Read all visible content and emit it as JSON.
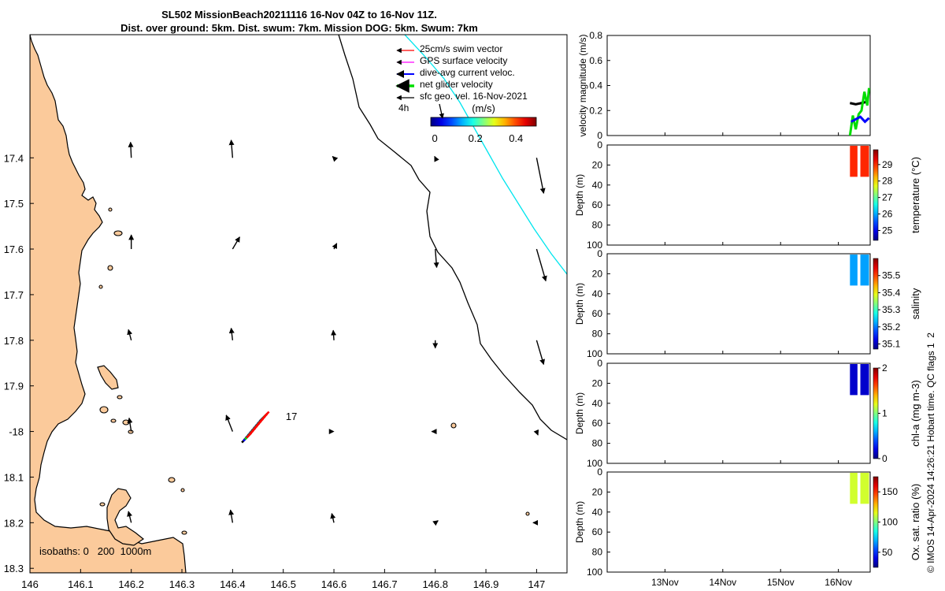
{
  "figure": {
    "title_line1": "SL502 MissionBeach20211116 16-Nov 04Z to 16-Nov 11Z.",
    "title_line2": "Dist. over ground: 5km. Dist. swum: 7km. Mission DOG: 5km. Swum: 7km",
    "footer": "© IMOS 14-Apr-2024 14:26:21 Hobart time. QC flags 1  2"
  },
  "chart_data": [
    {
      "type": "scatter",
      "panel": "map",
      "xlim": [
        146.0,
        147.06
      ],
      "ylim": [
        -18.31,
        -17.13
      ],
      "x_ticks": [
        146,
        146.1,
        146.2,
        146.3,
        146.4,
        146.5,
        146.6,
        146.7,
        146.8,
        146.9,
        147
      ],
      "x_tick_labels": [
        "146",
        "146.1",
        "146.2",
        "146.3",
        "146.4",
        "146.5",
        "146.6",
        "146.7",
        "146.8",
        "146.9",
        "147"
      ],
      "y_ticks": [
        -17.4,
        -17.5,
        -17.6,
        -17.7,
        -17.8,
        -17.9,
        -18.0,
        -18.1,
        -18.2,
        -18.3
      ],
      "y_tick_labels": [
        "17.4",
        "17.5",
        "17.6",
        "17.7",
        "17.8",
        "17.9",
        "-18",
        "18.1",
        "18.2",
        "18.3"
      ],
      "legend": [
        {
          "label": "25cm/s swim vector",
          "color": "#ff0000"
        },
        {
          "label": "GPS surface velocity",
          "color": "#ff00ff"
        },
        {
          "label": "dive-avg current veloc.",
          "color": "#0000ff"
        },
        {
          "label": "net glider velocity",
          "color": "#00dd00"
        },
        {
          "label": "sfc geo. vel. 16-Nov-2021",
          "color": "#000000"
        }
      ],
      "time_label": "4h",
      "colorbar": {
        "label": "(m/s)",
        "ticks": [
          "0",
          "0.2",
          "0.4"
        ],
        "range": [
          -0.02,
          0.5
        ]
      },
      "annotations": [
        {
          "text": "17",
          "lon": 146.505,
          "lat": -17.975
        }
      ],
      "isobaths_label": "isobaths: 0   200  1000m",
      "coastline_color": "#fbca9b",
      "current_arrows": [
        {
          "lon": 146.2,
          "lat": -17.4,
          "u": -0.01,
          "v": 0.22
        },
        {
          "lon": 146.4,
          "lat": -17.4,
          "u": -0.02,
          "v": 0.25
        },
        {
          "lon": 146.6,
          "lat": -17.4,
          "u": -0.02,
          "v": 0.02
        },
        {
          "lon": 146.8,
          "lat": -17.4,
          "u": -0.01,
          "v": 0.02
        },
        {
          "lon": 147.0,
          "lat": -17.4,
          "u": 0.1,
          "v": -0.5
        },
        {
          "lon": 146.2,
          "lat": -17.6,
          "u": 0.0,
          "v": 0.2
        },
        {
          "lon": 146.4,
          "lat": -17.6,
          "u": 0.1,
          "v": 0.17
        },
        {
          "lon": 146.6,
          "lat": -17.6,
          "u": 0.04,
          "v": 0.08
        },
        {
          "lon": 146.8,
          "lat": -17.6,
          "u": 0.02,
          "v": -0.26
        },
        {
          "lon": 147.0,
          "lat": -17.6,
          "u": 0.13,
          "v": -0.45
        },
        {
          "lon": 146.2,
          "lat": -17.8,
          "u": -0.04,
          "v": 0.15
        },
        {
          "lon": 146.4,
          "lat": -17.8,
          "u": -0.02,
          "v": 0.17
        },
        {
          "lon": 146.6,
          "lat": -17.8,
          "u": -0.01,
          "v": 0.14
        },
        {
          "lon": 146.8,
          "lat": -17.8,
          "u": 0.0,
          "v": -0.11
        },
        {
          "lon": 147.0,
          "lat": -17.8,
          "u": 0.1,
          "v": -0.34
        },
        {
          "lon": 146.2,
          "lat": -18.0,
          "u": -0.03,
          "v": 0.19
        },
        {
          "lon": 146.4,
          "lat": -18.0,
          "u": -0.09,
          "v": 0.23
        },
        {
          "lon": 146.6,
          "lat": -18.0,
          "u": 0.0,
          "v": 0.0
        },
        {
          "lon": 146.8,
          "lat": -18.0,
          "u": -0.05,
          "v": 0.0
        },
        {
          "lon": 147.0,
          "lat": -18.0,
          "u": 0.02,
          "v": -0.05
        },
        {
          "lon": 146.2,
          "lat": -18.2,
          "u": -0.04,
          "v": 0.16
        },
        {
          "lon": 146.4,
          "lat": -18.2,
          "u": -0.03,
          "v": 0.18
        },
        {
          "lon": 146.6,
          "lat": -18.2,
          "u": -0.03,
          "v": 0.13
        },
        {
          "lon": 146.8,
          "lat": -18.2,
          "u": 0.04,
          "v": 0.03
        },
        {
          "lon": 147.0,
          "lat": -18.2,
          "u": -0.05,
          "v": 0.0
        }
      ]
    },
    {
      "type": "line",
      "panel": "velocity",
      "ylabel": "velocity magnitude (m/s)",
      "ylim": [
        0,
        0.8
      ],
      "y_ticks": [
        "0",
        "0.2",
        "0.4",
        "0.6",
        "0.8"
      ],
      "x_tick_labels": [
        "13Nov",
        "14Nov",
        "15Nov",
        "16Nov"
      ],
      "xlim_days": [
        12.0,
        16.55
      ],
      "series": [
        {
          "color": "#000000",
          "x": [
            16.2,
            16.3,
            16.4,
            16.5
          ],
          "y": [
            0.26,
            0.25,
            0.26,
            0.27
          ]
        },
        {
          "color": "#00dd00",
          "x": [
            16.2,
            16.25,
            16.3,
            16.35,
            16.4,
            16.45,
            16.5,
            16.53
          ],
          "y": [
            0.0,
            0.16,
            0.05,
            0.17,
            0.2,
            0.35,
            0.24,
            0.38
          ]
        },
        {
          "color": "#0000ff",
          "x": [
            16.22,
            16.3,
            16.38,
            16.46,
            16.53
          ],
          "y": [
            0.11,
            0.13,
            0.15,
            0.11,
            0.14
          ]
        }
      ]
    },
    {
      "type": "heatmap",
      "panel": "temperature",
      "ylabel": "Depth (m)",
      "cbar_label": "temperature (°C)",
      "cbar_ticks": [
        "29",
        "28",
        "27",
        "26",
        "25"
      ],
      "cbar_range": [
        24.4,
        29.9
      ],
      "y_ticks": [
        "0",
        "20",
        "40",
        "60",
        "80",
        "100"
      ],
      "value": 29.0
    },
    {
      "type": "heatmap",
      "panel": "salinity",
      "ylabel": "Depth (m)",
      "cbar_label": "salinity",
      "cbar_ticks": [
        "35.5",
        "35.4",
        "35.3",
        "35.2",
        "35.1"
      ],
      "cbar_range": [
        35.07,
        35.6
      ],
      "y_ticks": [
        "0",
        "20",
        "40",
        "60",
        "80",
        "100"
      ],
      "value": 35.22
    },
    {
      "type": "heatmap",
      "panel": "chl-a",
      "ylabel": "Depth (m)",
      "cbar_label": "chl-a (mg m-3)",
      "cbar_ticks": [
        "2",
        "1",
        "0"
      ],
      "cbar_range": [
        0,
        2
      ],
      "y_ticks": [
        "0",
        "20",
        "40",
        "60",
        "80",
        "100"
      ],
      "value": 0.15
    },
    {
      "type": "heatmap",
      "panel": "oxygen",
      "ylabel": "Depth (m)",
      "cbar_label": "Ox. sat. ratio (%)",
      "cbar_ticks": [
        "150",
        "100",
        "50"
      ],
      "cbar_range": [
        25,
        175
      ],
      "y_ticks": [
        "0",
        "20",
        "40",
        "60",
        "80",
        "100"
      ],
      "x_tick_labels": [
        "13Nov",
        "14Nov",
        "15Nov",
        "16Nov"
      ],
      "value": 112
    }
  ]
}
